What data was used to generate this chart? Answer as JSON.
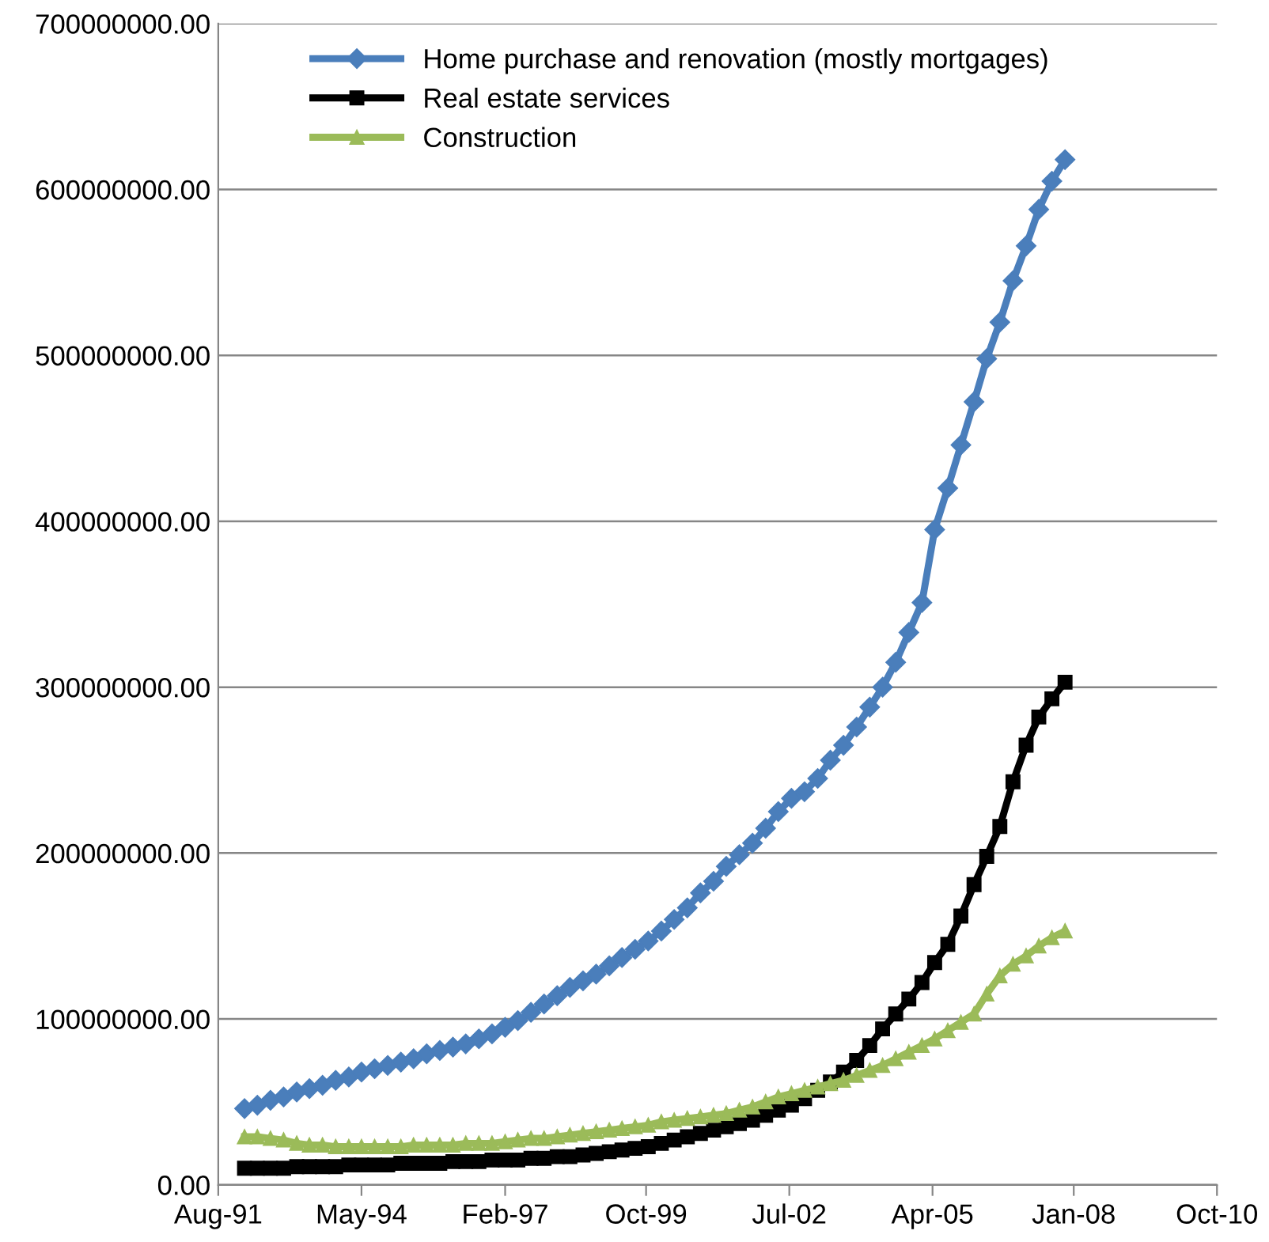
{
  "chart_data": {
    "type": "line",
    "x": [
      "1992-02",
      "1992-05",
      "1992-08",
      "1992-11",
      "1993-02",
      "1993-05",
      "1993-08",
      "1993-11",
      "1994-02",
      "1994-05",
      "1994-08",
      "1994-11",
      "1995-02",
      "1995-05",
      "1995-08",
      "1995-11",
      "1996-02",
      "1996-05",
      "1996-08",
      "1996-11",
      "1997-02",
      "1997-05",
      "1997-08",
      "1997-11",
      "1998-02",
      "1998-05",
      "1998-08",
      "1998-11",
      "1999-02",
      "1999-05",
      "1999-08",
      "1999-11",
      "2000-02",
      "2000-05",
      "2000-08",
      "2000-11",
      "2001-02",
      "2001-05",
      "2001-08",
      "2001-11",
      "2002-02",
      "2002-05",
      "2002-08",
      "2002-11",
      "2003-02",
      "2003-05",
      "2003-08",
      "2003-11",
      "2004-02",
      "2004-05",
      "2004-08",
      "2004-11",
      "2005-02",
      "2005-05",
      "2005-08",
      "2005-11",
      "2006-02",
      "2006-05",
      "2006-08",
      "2006-11",
      "2007-02",
      "2007-05",
      "2007-08",
      "2007-11"
    ],
    "series": [
      {
        "name": "Home purchase and renovation (mostly mortgages)",
        "color": "#4a7ebb",
        "marker": "diamond",
        "values": [
          46000000,
          48000000,
          51000000,
          53000000,
          56000000,
          58000000,
          60000000,
          63000000,
          65000000,
          68000000,
          70000000,
          72000000,
          74000000,
          76000000,
          79000000,
          81000000,
          83000000,
          85000000,
          88000000,
          91000000,
          95000000,
          99000000,
          104000000,
          109000000,
          114000000,
          119000000,
          123000000,
          127000000,
          132000000,
          137000000,
          142000000,
          147000000,
          153000000,
          160000000,
          167000000,
          176000000,
          183000000,
          192000000,
          199000000,
          206000000,
          215000000,
          225000000,
          233000000,
          237000000,
          245000000,
          256000000,
          265000000,
          276000000,
          288000000,
          300000000,
          315000000,
          333000000,
          351000000,
          395000000,
          420000000,
          446000000,
          472000000,
          498000000,
          520000000,
          545000000,
          566000000,
          588000000,
          605000000,
          618000000
        ]
      },
      {
        "name": "Real estate services",
        "color": "#000000",
        "marker": "square",
        "values": [
          10000000,
          10000000,
          10000000,
          10000000,
          11000000,
          11000000,
          11000000,
          11000000,
          12000000,
          12000000,
          12000000,
          12000000,
          13000000,
          13000000,
          13000000,
          13000000,
          14000000,
          14000000,
          14000000,
          15000000,
          15000000,
          15000000,
          16000000,
          16000000,
          17000000,
          17000000,
          18000000,
          19000000,
          20000000,
          21000000,
          22000000,
          23000000,
          25000000,
          27000000,
          29000000,
          31000000,
          33000000,
          35000000,
          37000000,
          39000000,
          42000000,
          45000000,
          48000000,
          52000000,
          57000000,
          62000000,
          68000000,
          75000000,
          84000000,
          94000000,
          103000000,
          112000000,
          122000000,
          134000000,
          145000000,
          162000000,
          181000000,
          198000000,
          216000000,
          243000000,
          265000000,
          282000000,
          293000000,
          303000000
        ]
      },
      {
        "name": "Construction",
        "color": "#9bbb59",
        "marker": "triangle",
        "values": [
          29000000,
          29000000,
          28000000,
          27000000,
          25000000,
          24000000,
          24000000,
          23000000,
          23000000,
          23000000,
          23000000,
          23000000,
          23000000,
          24000000,
          24000000,
          24000000,
          24000000,
          25000000,
          25000000,
          25000000,
          26000000,
          27000000,
          28000000,
          28000000,
          29000000,
          30000000,
          31000000,
          32000000,
          33000000,
          34000000,
          35000000,
          36000000,
          38000000,
          39000000,
          40000000,
          41000000,
          42000000,
          43000000,
          45000000,
          47000000,
          50000000,
          53000000,
          55000000,
          57000000,
          59000000,
          61000000,
          63000000,
          66000000,
          69000000,
          72000000,
          76000000,
          80000000,
          84000000,
          88000000,
          93000000,
          98000000,
          103000000,
          115000000,
          126000000,
          133000000,
          138000000,
          144000000,
          149000000,
          153000000
        ]
      }
    ],
    "xlim": [
      "1991-08-15",
      "2010-10-15"
    ],
    "xticks": [
      {
        "value": "1991-08-15",
        "label": "Aug-91"
      },
      {
        "value": "1994-05-15",
        "label": "May-94"
      },
      {
        "value": "1997-02-15",
        "label": "Feb-97"
      },
      {
        "value": "1999-10-31",
        "label": "Oct-99"
      },
      {
        "value": "2002-07-31",
        "label": "Jul-02"
      },
      {
        "value": "2005-04-30",
        "label": "Apr-05"
      },
      {
        "value": "2008-01-15",
        "label": "Jan-08"
      },
      {
        "value": "2010-10-15",
        "label": "Oct-10"
      }
    ],
    "ylim": [
      0,
      700000000
    ],
    "yticks": [
      {
        "value": 0,
        "label": "0.00"
      },
      {
        "value": 100000000,
        "label": "100000000.00"
      },
      {
        "value": 200000000,
        "label": "200000000.00"
      },
      {
        "value": 300000000,
        "label": "300000000.00"
      },
      {
        "value": 400000000,
        "label": "400000000.00"
      },
      {
        "value": 500000000,
        "label": "500000000.00"
      },
      {
        "value": 600000000,
        "label": "600000000.00"
      },
      {
        "value": 700000000,
        "label": "700000000.00"
      }
    ],
    "grid": "y",
    "legend": "top left",
    "line_style": "solid"
  }
}
